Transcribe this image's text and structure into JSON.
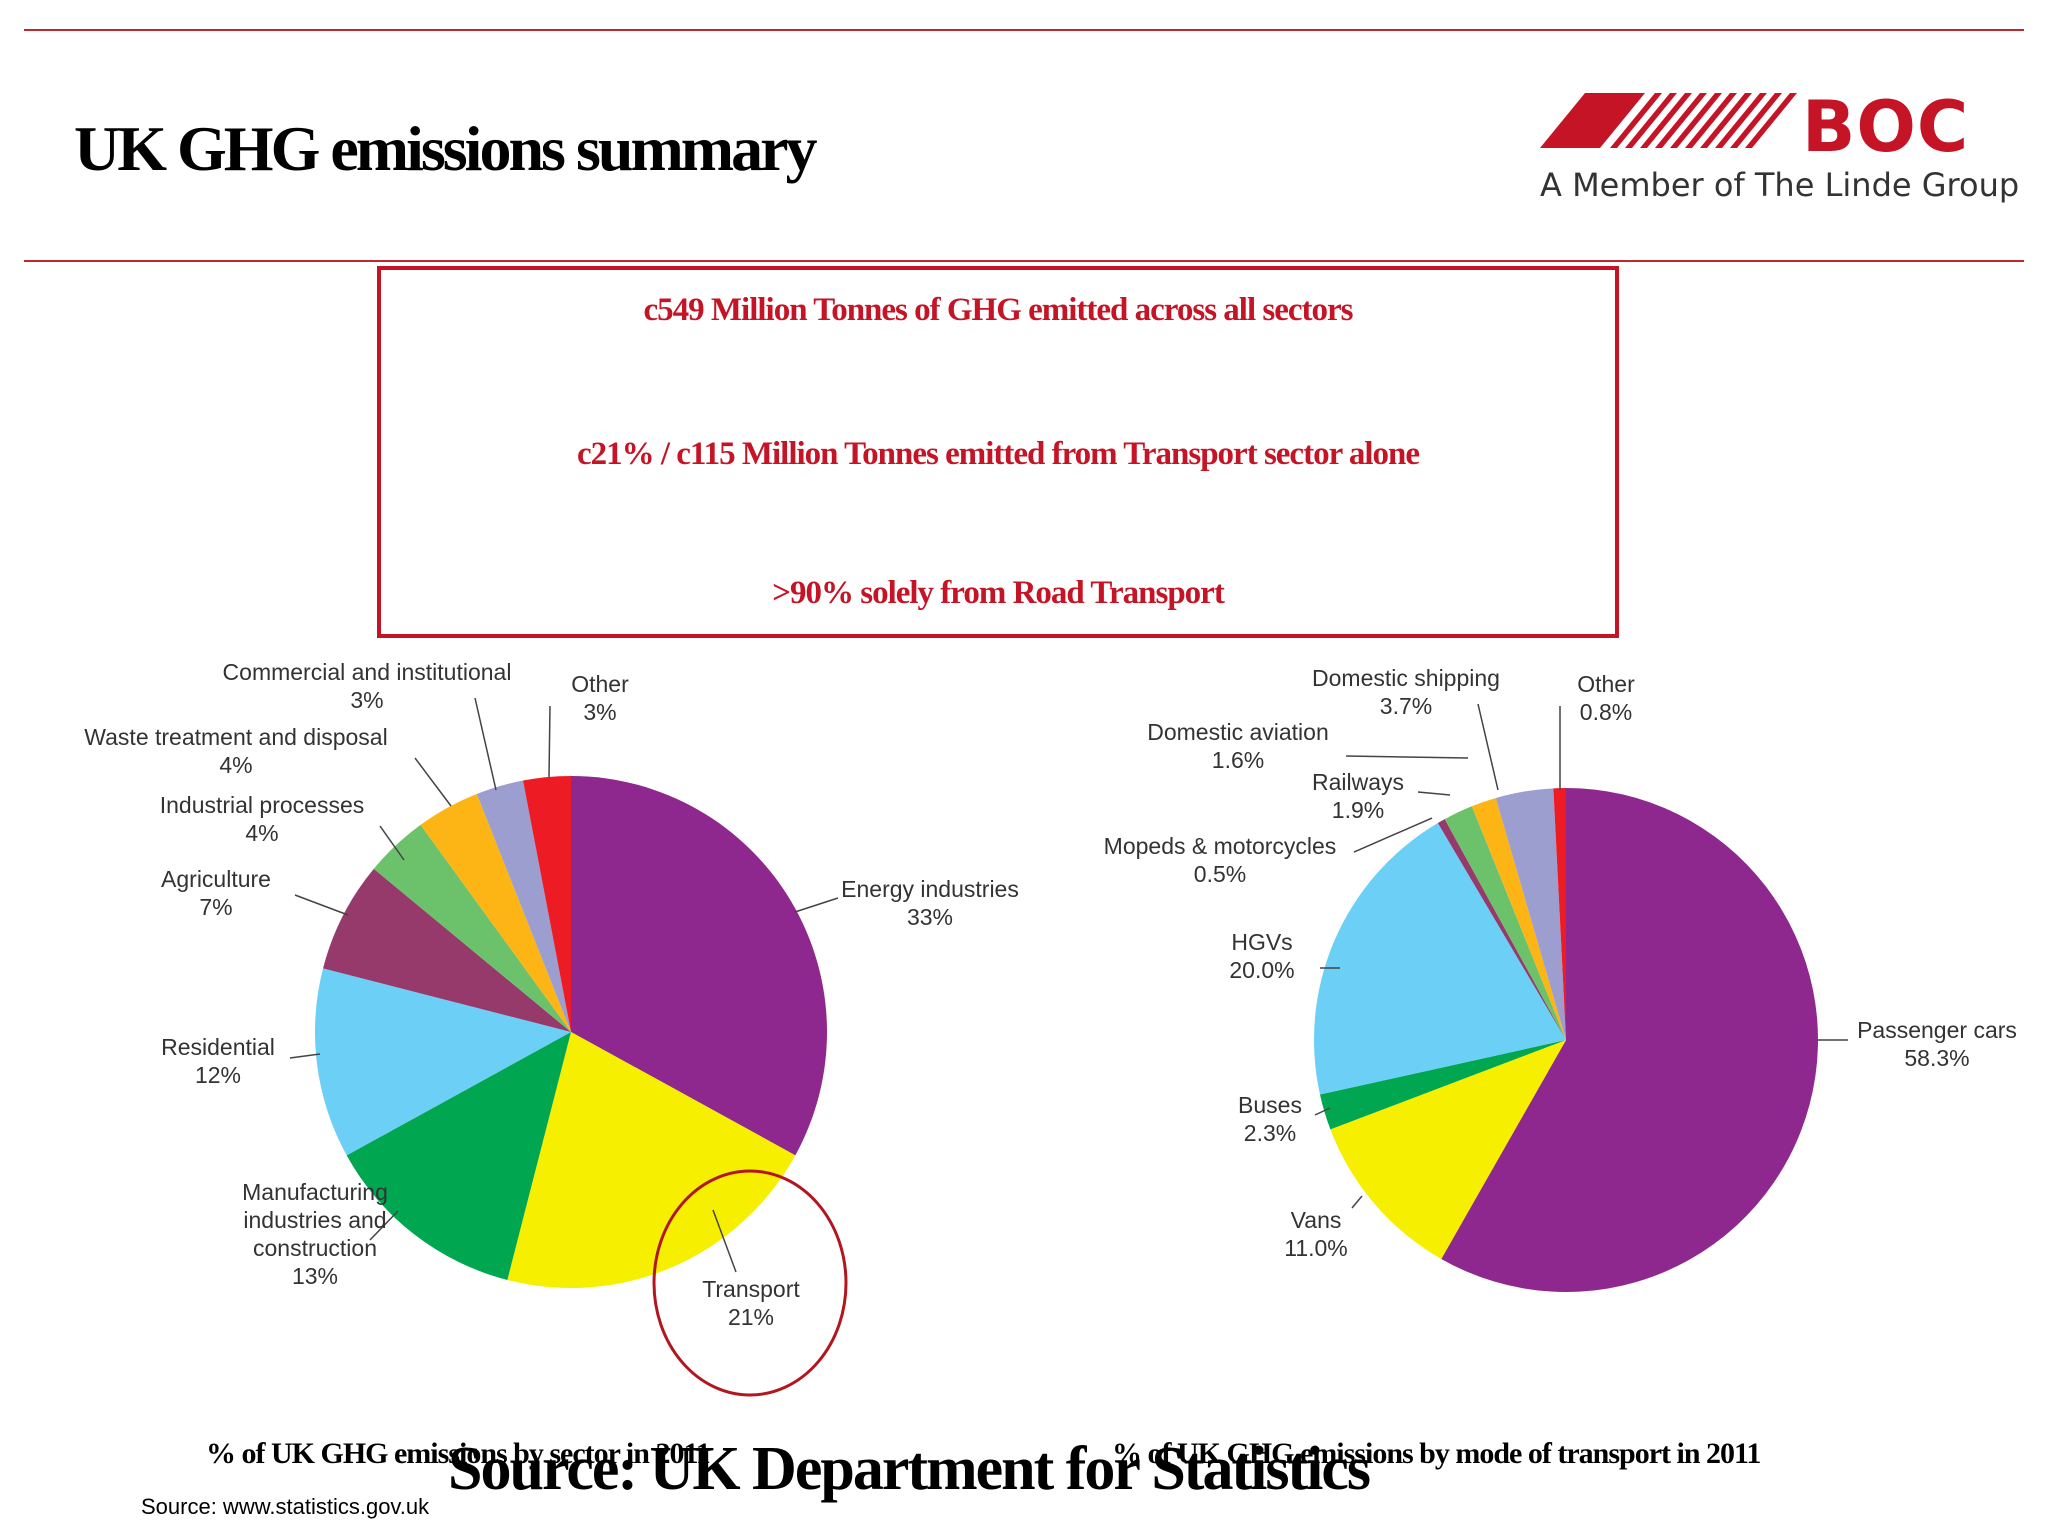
{
  "header": {
    "title": "UK GHG emissions summary",
    "logo_name": "BOC",
    "logo_tagline": "A Member of The Linde Group"
  },
  "summary": {
    "line1": "c549 Million Tonnes of GHG emitted across all sectors",
    "line2": "c21% / c115 Million Tonnes emitted from Transport sector alone",
    "line3": ">90% solely from Road Transport"
  },
  "captions": {
    "left": "% of UK GHG emissions by sector in 2011",
    "right": "% of UK GHG emissions by mode of transport in 2011"
  },
  "source": {
    "big": "Source: UK Department for Statistics",
    "small": "Source: www.statistics.gov.uk"
  },
  "colors": {
    "brand_red": "#c41425",
    "rule_red": "#c0272d",
    "highlight_circle": "#b2161f"
  },
  "chart_data": [
    {
      "type": "pie",
      "title": "% of UK GHG emissions by sector in 2011",
      "highlight": "Transport",
      "slices": [
        {
          "label": "Energy industries",
          "value": 33,
          "display": "33%",
          "color": "#8e288e"
        },
        {
          "label": "Transport",
          "value": 21,
          "display": "21%",
          "color": "#f6ef00"
        },
        {
          "label": "Manufacturing industries and construction",
          "value": 13,
          "display": "13%",
          "color": "#00a650"
        },
        {
          "label": "Residential",
          "value": 12,
          "display": "12%",
          "color": "#6ccff6"
        },
        {
          "label": "Agriculture",
          "value": 7,
          "display": "7%",
          "color": "#963a6b"
        },
        {
          "label": "Industrial processes",
          "value": 4,
          "display": "4%",
          "color": "#6cc16b"
        },
        {
          "label": "Waste treatment and disposal",
          "value": 4,
          "display": "4%",
          "color": "#fdb515"
        },
        {
          "label": "Commercial and institutional",
          "value": 3,
          "display": "3%",
          "color": "#9c9ed0"
        },
        {
          "label": "Other",
          "value": 3,
          "display": "3%",
          "color": "#ed1c24"
        }
      ]
    },
    {
      "type": "pie",
      "title": "% of UK GHG emissions by mode of transport in 2011",
      "slices": [
        {
          "label": "Passenger cars",
          "value": 58.3,
          "display": "58.3%",
          "color": "#8e288e"
        },
        {
          "label": "Vans",
          "value": 11.0,
          "display": "11.0%",
          "color": "#f6ef00"
        },
        {
          "label": "Buses",
          "value": 2.3,
          "display": "2.3%",
          "color": "#00a650"
        },
        {
          "label": "HGVs",
          "value": 20.0,
          "display": "20.0%",
          "color": "#6ccff6"
        },
        {
          "label": "Mopeds & motorcycles",
          "value": 0.5,
          "display": "0.5%",
          "color": "#963a6b"
        },
        {
          "label": "Railways",
          "value": 1.9,
          "display": "1.9%",
          "color": "#6cc16b"
        },
        {
          "label": "Domestic aviation",
          "value": 1.6,
          "display": "1.6%",
          "color": "#fdb515"
        },
        {
          "label": "Domestic shipping",
          "value": 3.7,
          "display": "3.7%",
          "color": "#9c9ed0"
        },
        {
          "label": "Other",
          "value": 0.8,
          "display": "0.8%",
          "color": "#ed1c24"
        }
      ]
    }
  ]
}
